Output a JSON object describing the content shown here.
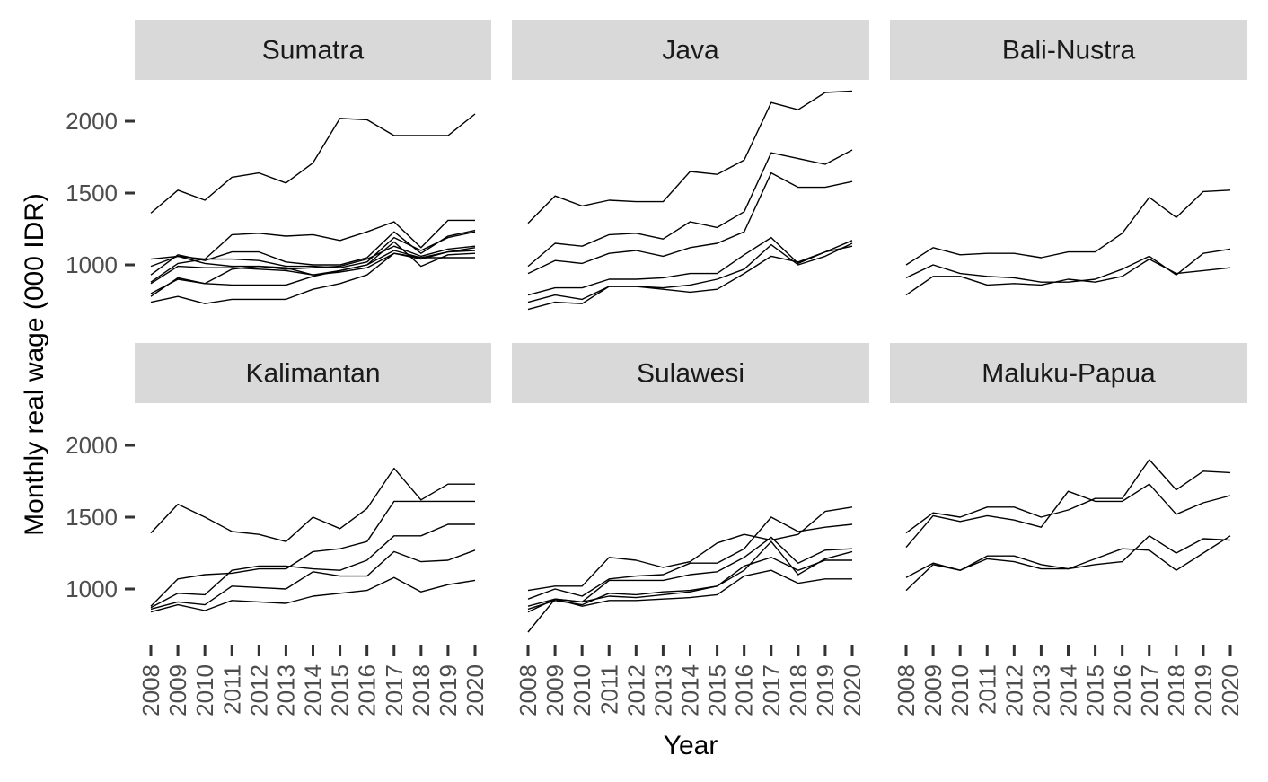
{
  "chart_data": {
    "type": "line",
    "layout": "small-multiples 3x2",
    "xlabel": "Year",
    "ylabel": "Monthly real wage (000 IDR)",
    "x": [
      2008,
      2009,
      2010,
      2011,
      2012,
      2013,
      2014,
      2015,
      2016,
      2017,
      2018,
      2019,
      2020
    ],
    "y_ticks": [
      1000,
      1500,
      2000
    ],
    "ylim": [
      600,
      2280
    ],
    "grid": false,
    "line_color": "#000000",
    "strip_color": "#d9d9d9",
    "panels": [
      {
        "title": "Sumatra",
        "series": [
          {
            "values": [
              1360,
              1520,
              1450,
              1610,
              1640,
              1570,
              1710,
              2020,
              2010,
              1900,
              1900,
              1900,
              2050
            ]
          },
          {
            "values": [
              1040,
              1060,
              1040,
              1210,
              1220,
              1200,
              1210,
              1170,
              1230,
              1300,
              1120,
              1310,
              1310
            ]
          },
          {
            "values": [
              930,
              1070,
              1030,
              1090,
              1090,
              1020,
              1000,
              1000,
              1050,
              1230,
              1080,
              1200,
              1240
            ]
          },
          {
            "values": [
              880,
              1010,
              1040,
              1040,
              1030,
              990,
              990,
              980,
              1020,
              1190,
              1100,
              1190,
              1230
            ]
          },
          {
            "values": [
              990,
              1060,
              1010,
              990,
              990,
              970,
              980,
              990,
              1040,
              1130,
              1060,
              1110,
              1130
            ]
          },
          {
            "values": [
              870,
              990,
              980,
              980,
              970,
              960,
              930,
              960,
              1000,
              1100,
              1050,
              1090,
              1120
            ]
          },
          {
            "values": [
              800,
              900,
              870,
              970,
              990,
              980,
              930,
              950,
              980,
              1080,
              1040,
              1090,
              1100
            ]
          },
          {
            "values": [
              780,
              910,
              870,
              860,
              860,
              860,
              920,
              960,
              1000,
              1160,
              990,
              1070,
              1080
            ]
          },
          {
            "values": [
              740,
              780,
              730,
              760,
              760,
              760,
              830,
              870,
              930,
              1080,
              1050,
              1050,
              1050
            ]
          }
        ]
      },
      {
        "title": "Java",
        "series": [
          {
            "values": [
              1290,
              1480,
              1410,
              1450,
              1440,
              1440,
              1650,
              1630,
              1730,
              2130,
              2080,
              2200,
              2210
            ]
          },
          {
            "values": [
              990,
              1150,
              1130,
              1210,
              1220,
              1180,
              1300,
              1260,
              1370,
              1780,
              1740,
              1700,
              1800
            ]
          },
          {
            "values": [
              940,
              1030,
              1010,
              1080,
              1100,
              1060,
              1120,
              1150,
              1230,
              1640,
              1540,
              1540,
              1580
            ]
          },
          {
            "values": [
              790,
              840,
              840,
              900,
              900,
              910,
              940,
              940,
              1070,
              1190,
              1010,
              1090,
              1170
            ]
          },
          {
            "values": [
              740,
              790,
              760,
              850,
              850,
              840,
              860,
              900,
              970,
              1140,
              1000,
              1060,
              1150
            ]
          },
          {
            "values": [
              690,
              740,
              730,
              850,
              850,
              830,
              810,
              830,
              940,
              1060,
              1020,
              1090,
              1130
            ]
          }
        ]
      },
      {
        "title": "Bali-Nustra",
        "series": [
          {
            "values": [
              1000,
              1120,
              1070,
              1080,
              1080,
              1050,
              1090,
              1090,
              1220,
              1470,
              1330,
              1510,
              1520
            ]
          },
          {
            "values": [
              910,
              1000,
              940,
              920,
              910,
              880,
              880,
              900,
              970,
              1060,
              930,
              1080,
              1110
            ]
          },
          {
            "values": [
              790,
              920,
              920,
              860,
              870,
              860,
              900,
              880,
              920,
              1040,
              940,
              960,
              980
            ]
          }
        ]
      },
      {
        "title": "Kalimantan",
        "series": [
          {
            "values": [
              1390,
              1590,
              1500,
              1400,
              1380,
              1330,
              1500,
              1420,
              1560,
              1840,
              1620,
              1730,
              1730
            ]
          },
          {
            "values": [
              880,
              1070,
              1100,
              1110,
              1140,
              1140,
              1260,
              1280,
              1330,
              1610,
              1610,
              1610,
              1610
            ]
          },
          {
            "values": [
              870,
              970,
              960,
              1130,
              1160,
              1160,
              1140,
              1130,
              1200,
              1370,
              1370,
              1450,
              1450
            ]
          },
          {
            "values": [
              860,
              910,
              890,
              1020,
              1010,
              1000,
              1120,
              1090,
              1090,
              1260,
              1190,
              1200,
              1270
            ]
          },
          {
            "values": [
              840,
              890,
              850,
              920,
              910,
              900,
              950,
              970,
              990,
              1080,
              980,
              1030,
              1060
            ]
          }
        ]
      },
      {
        "title": "Sulawesi",
        "series": [
          {
            "values": [
              990,
              1020,
              1020,
              1220,
              1200,
              1150,
              1190,
              1320,
              1380,
              1340,
              1380,
              1540,
              1570
            ]
          },
          {
            "values": [
              930,
              1000,
              950,
              1070,
              1090,
              1100,
              1180,
              1180,
              1280,
              1500,
              1400,
              1430,
              1450
            ]
          },
          {
            "values": [
              880,
              930,
              910,
              1060,
              1060,
              1060,
              1100,
              1120,
              1220,
              1360,
              1180,
              1270,
              1280
            ]
          },
          {
            "values": [
              860,
              920,
              890,
              970,
              960,
              980,
              990,
              1020,
              1130,
              1330,
              1100,
              1210,
              1260
            ]
          },
          {
            "values": [
              840,
              930,
              910,
              950,
              940,
              960,
              980,
              1020,
              1160,
              1220,
              1130,
              1200,
              1200
            ]
          },
          {
            "values": [
              700,
              930,
              880,
              920,
              920,
              930,
              940,
              960,
              1090,
              1130,
              1040,
              1070,
              1070
            ]
          }
        ]
      },
      {
        "title": "Maluku-Papua",
        "series": [
          {
            "values": [
              1390,
              1530,
              1500,
              1570,
              1570,
              1500,
              1550,
              1630,
              1630,
              1900,
              1690,
              1820,
              1810
            ]
          },
          {
            "values": [
              1290,
              1510,
              1470,
              1510,
              1480,
              1430,
              1680,
              1610,
              1610,
              1730,
              1520,
              1600,
              1650
            ]
          },
          {
            "values": [
              1080,
              1180,
              1130,
              1230,
              1230,
              1170,
              1140,
              1210,
              1280,
              1270,
              1130,
              1250,
              1370
            ]
          },
          {
            "values": [
              990,
              1170,
              1130,
              1210,
              1190,
              1140,
              1140,
              1170,
              1190,
              1370,
              1250,
              1350,
              1340
            ]
          }
        ]
      }
    ]
  }
}
